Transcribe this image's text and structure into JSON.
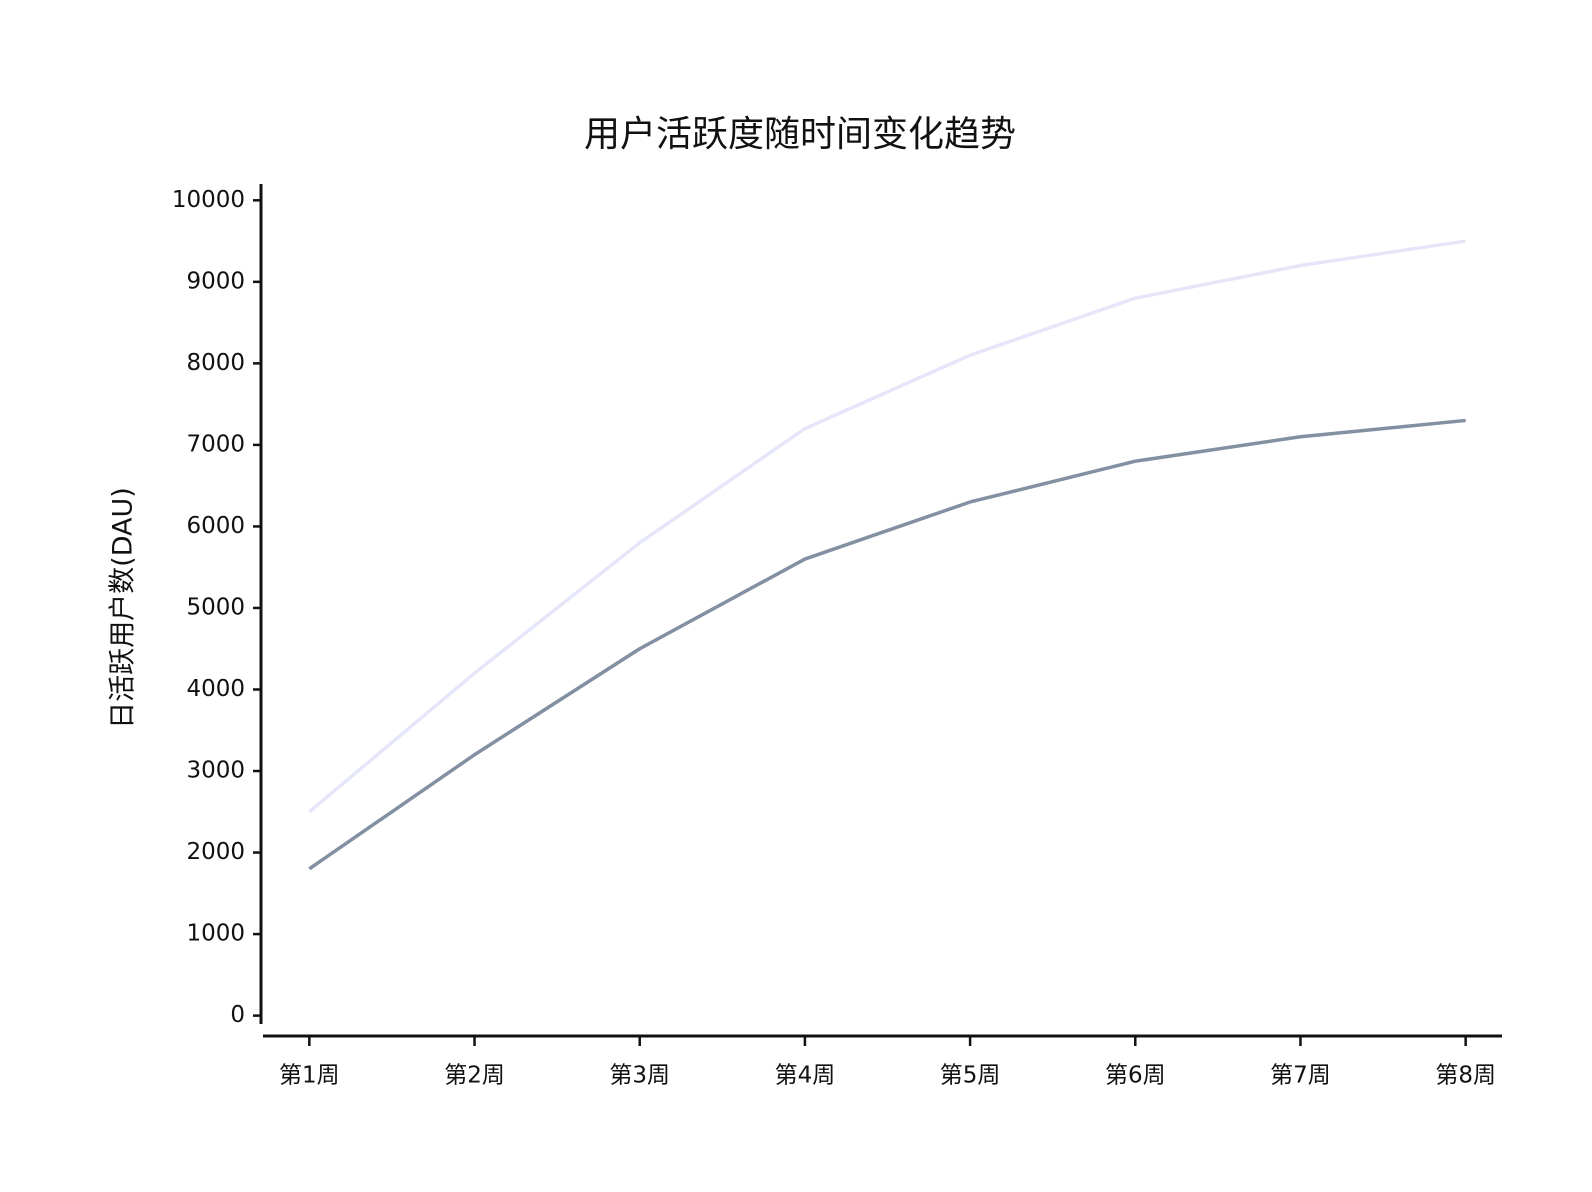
{
  "chart_data": {
    "type": "line",
    "title": "用户活跃度随时间变化趋势",
    "y_label": "日活跃用户数(DAU)",
    "categories": [
      "第1周",
      "第2周",
      "第3周",
      "第4周",
      "第5周",
      "第6周",
      "第7周",
      "第8周"
    ],
    "series": [
      {
        "color": "#e6e6fa",
        "values": [
          2500,
          4200,
          5800,
          7200,
          8100,
          8800,
          9200,
          9500
        ]
      },
      {
        "color": "#8390a2",
        "values": [
          1800,
          3200,
          4500,
          5600,
          6300,
          6800,
          7100,
          7300
        ]
      }
    ],
    "ylim": [
      -250,
      10200
    ],
    "yticks": [
      0,
      1000,
      2000,
      3000,
      4000,
      5000,
      6000,
      7000,
      8000,
      9000,
      10000
    ],
    "grid": false
  }
}
